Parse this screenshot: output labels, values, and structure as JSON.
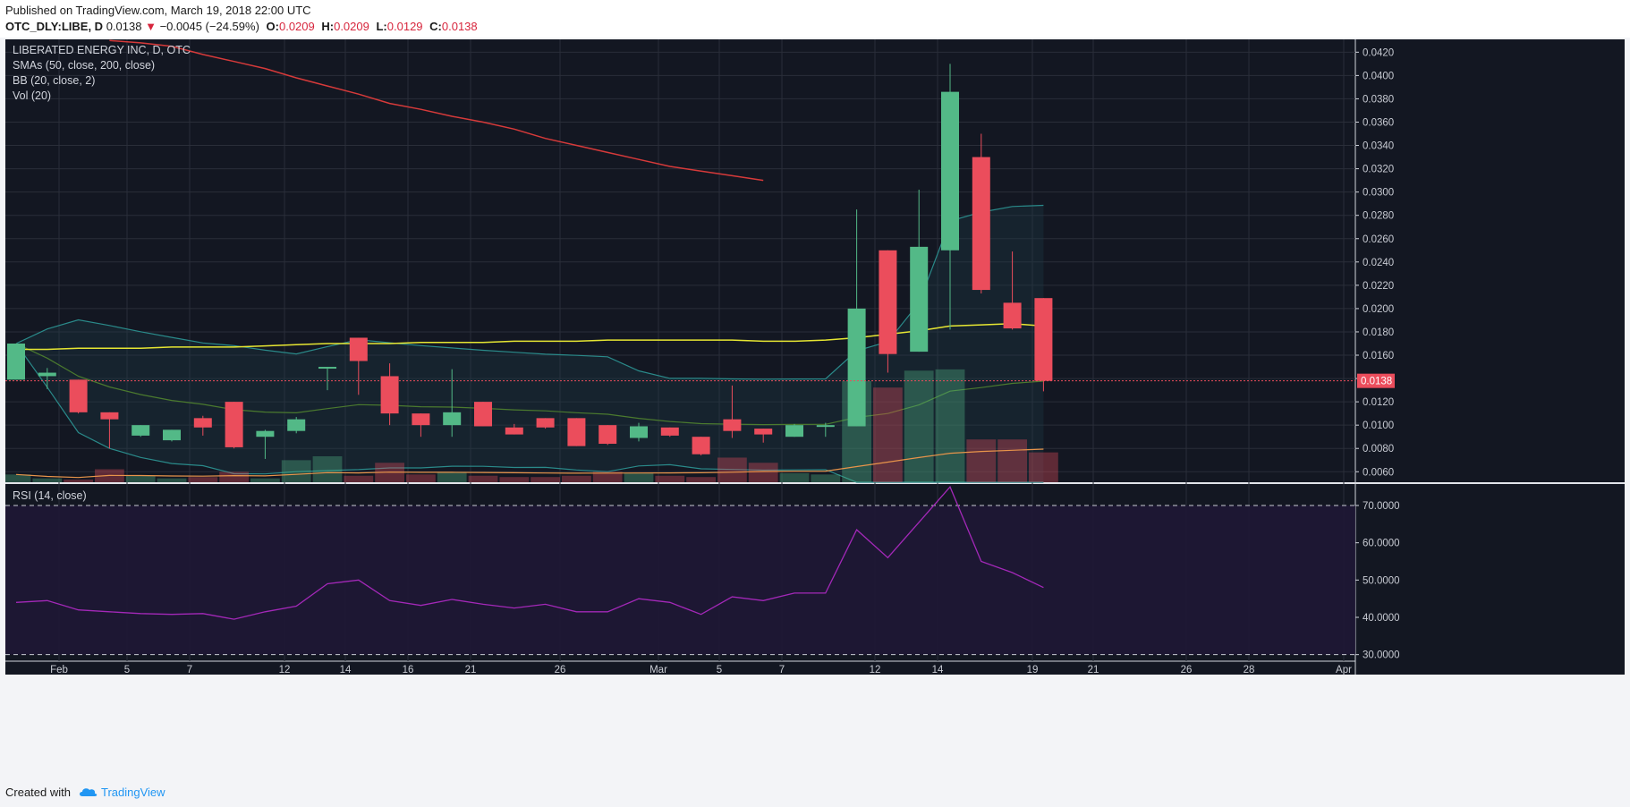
{
  "header": {
    "published": "Published on TradingView.com, March 19, 2018 22:00 UTC",
    "symbol": "OTC_DLY:LIBE, D",
    "last": "0.0138",
    "change": "−0.0045 (−24.59%)",
    "o_label": "O:",
    "o": "0.0209",
    "h_label": "H:",
    "h": "0.0209",
    "l_label": "L:",
    "l": "0.0129",
    "c_label": "C:",
    "c": "0.0138"
  },
  "legend": {
    "title": "LIBERATED ENERGY INC, D, OTC",
    "smas": "SMAs (50, close, 200, close)",
    "bb": "BB (20, close, 2)",
    "vol": "Vol (20)",
    "rsi": "RSI (14, close)"
  },
  "footer": {
    "created_with": "Created with",
    "brand": "TradingView"
  },
  "colors": {
    "bg": "#131722",
    "up": "#53b987",
    "down": "#eb4d5c",
    "sma50": "#e6e632",
    "sma200": "#d63a3a",
    "bb_mid": "#4b7a2e",
    "bb_band": "#2a8a8a",
    "rsi_line": "#a328b8",
    "rsi_fill": "#1f1735",
    "vol_ma": "#e8944a"
  },
  "chart_data": {
    "type": "candlestick",
    "title": "LIBERATED ENERGY INC, D, OTC",
    "price_axis": {
      "ticks": [
        "0.0420",
        "0.0400",
        "0.0380",
        "0.0360",
        "0.0340",
        "0.0320",
        "0.0300",
        "0.0280",
        "0.0260",
        "0.0240",
        "0.0220",
        "0.0200",
        "0.0180",
        "0.0160",
        "0.0140",
        "0.0120",
        "0.0100",
        "0.0080",
        "0.0060"
      ],
      "last_price_label": "0.0138"
    },
    "date_axis": [
      "Feb",
      "5",
      "7",
      "12",
      "14",
      "16",
      "21",
      "26",
      "Mar",
      "5",
      "7",
      "12",
      "14",
      "19",
      "21",
      "26",
      "28",
      "Apr"
    ],
    "candles": [
      {
        "o": 0.0139,
        "h": 0.017,
        "l": 0.0139,
        "c": 0.017
      },
      {
        "o": 0.0142,
        "h": 0.0149,
        "l": 0.0131,
        "c": 0.0145
      },
      {
        "o": 0.0139,
        "h": 0.0139,
        "l": 0.011,
        "c": 0.0111
      },
      {
        "o": 0.0111,
        "h": 0.0111,
        "l": 0.008,
        "c": 0.0105
      },
      {
        "o": 0.0091,
        "h": 0.01,
        "l": 0.009,
        "c": 0.01
      },
      {
        "o": 0.0087,
        "h": 0.0096,
        "l": 0.0086,
        "c": 0.0096
      },
      {
        "o": 0.0106,
        "h": 0.0108,
        "l": 0.0091,
        "c": 0.0098
      },
      {
        "o": 0.012,
        "h": 0.012,
        "l": 0.008,
        "c": 0.0081
      },
      {
        "o": 0.009,
        "h": 0.0096,
        "l": 0.0071,
        "c": 0.0095
      },
      {
        "o": 0.0095,
        "h": 0.0107,
        "l": 0.0093,
        "c": 0.0105
      },
      {
        "o": 0.015,
        "h": 0.015,
        "l": 0.013,
        "c": 0.015
      },
      {
        "o": 0.0175,
        "h": 0.0175,
        "l": 0.0126,
        "c": 0.0155
      },
      {
        "o": 0.0142,
        "h": 0.0153,
        "l": 0.01,
        "c": 0.011
      },
      {
        "o": 0.011,
        "h": 0.011,
        "l": 0.009,
        "c": 0.01
      },
      {
        "o": 0.01,
        "h": 0.0148,
        "l": 0.009,
        "c": 0.0111
      },
      {
        "o": 0.012,
        "h": 0.012,
        "l": 0.0099,
        "c": 0.0099
      },
      {
        "o": 0.0098,
        "h": 0.0101,
        "l": 0.0092,
        "c": 0.0092
      },
      {
        "o": 0.0106,
        "h": 0.0106,
        "l": 0.0097,
        "c": 0.0098
      },
      {
        "o": 0.0106,
        "h": 0.0106,
        "l": 0.0082,
        "c": 0.0082
      },
      {
        "o": 0.01,
        "h": 0.01,
        "l": 0.0083,
        "c": 0.0084
      },
      {
        "o": 0.0089,
        "h": 0.0102,
        "l": 0.0086,
        "c": 0.0099
      },
      {
        "o": 0.0098,
        "h": 0.0098,
        "l": 0.009,
        "c": 0.0091
      },
      {
        "o": 0.009,
        "h": 0.009,
        "l": 0.0074,
        "c": 0.0075
      },
      {
        "o": 0.0105,
        "h": 0.0134,
        "l": 0.0089,
        "c": 0.0095
      },
      {
        "o": 0.0097,
        "h": 0.0097,
        "l": 0.0085,
        "c": 0.0092
      },
      {
        "o": 0.009,
        "h": 0.0101,
        "l": 0.009,
        "c": 0.01
      },
      {
        "o": 0.01,
        "h": 0.0102,
        "l": 0.009,
        "c": 0.01
      },
      {
        "o": 0.0099,
        "h": 0.0285,
        "l": 0.0099,
        "c": 0.02
      },
      {
        "o": 0.025,
        "h": 0.025,
        "l": 0.0145,
        "c": 0.0161
      },
      {
        "o": 0.0163,
        "h": 0.0302,
        "l": 0.0163,
        "c": 0.0253
      },
      {
        "o": 0.025,
        "h": 0.041,
        "l": 0.0182,
        "c": 0.0386
      },
      {
        "o": 0.033,
        "h": 0.035,
        "l": 0.0213,
        "c": 0.0216
      },
      {
        "o": 0.0205,
        "h": 0.0249,
        "l": 0.0182,
        "c": 0.0183
      },
      {
        "o": 0.0209,
        "h": 0.0209,
        "l": 0.0129,
        "c": 0.0138
      }
    ],
    "volume": [
      0.06,
      0.03,
      0.02,
      0.1,
      0.05,
      0.03,
      0.04,
      0.08,
      0.03,
      0.17,
      0.2,
      0.05,
      0.15,
      0.06,
      0.08,
      0.05,
      0.04,
      0.04,
      0.05,
      0.08,
      0.07,
      0.05,
      0.04,
      0.19,
      0.15,
      0.07,
      0.06,
      0.78,
      0.73,
      0.86,
      0.87,
      0.33,
      0.33,
      0.23
    ],
    "sma50": [
      0.0165,
      0.0165,
      0.0166,
      0.0166,
      0.0166,
      0.0167,
      0.0167,
      0.0167,
      0.0168,
      0.0169,
      0.017,
      0.017,
      0.017,
      0.0171,
      0.0171,
      0.0171,
      0.0172,
      0.0172,
      0.0172,
      0.0173,
      0.0173,
      0.0173,
      0.0173,
      0.0173,
      0.0172,
      0.0172,
      0.0173,
      0.0175,
      0.0178,
      0.0181,
      0.0185,
      0.0186,
      0.0187,
      0.0185
    ],
    "sma200": [
      0.043,
      0.0428,
      0.0425,
      0.0418,
      0.0412,
      0.0406,
      0.0398,
      0.0391,
      0.0384,
      0.0376,
      0.0371,
      0.0365,
      0.036,
      0.0354,
      0.0346,
      0.034,
      0.0334,
      0.0328,
      0.0322,
      0.0318,
      0.0314,
      0.031
    ],
    "sma200_x_start": 3,
    "rsi": {
      "levels": [
        70,
        30
      ],
      "ticks": [
        "70.0000",
        "60.0000",
        "50.0000",
        "40.0000",
        "30.0000"
      ],
      "values": [
        44,
        44.5,
        42,
        41.5,
        41,
        40.8,
        41,
        39.5,
        41.5,
        43,
        49,
        50,
        44.5,
        43.2,
        44.8,
        43.5,
        42.5,
        43.5,
        41.5,
        41.5,
        45,
        44,
        40.8,
        45.5,
        44.5,
        46.5,
        46.5,
        63.5,
        56,
        65.5,
        75,
        55,
        52,
        48
      ]
    }
  }
}
